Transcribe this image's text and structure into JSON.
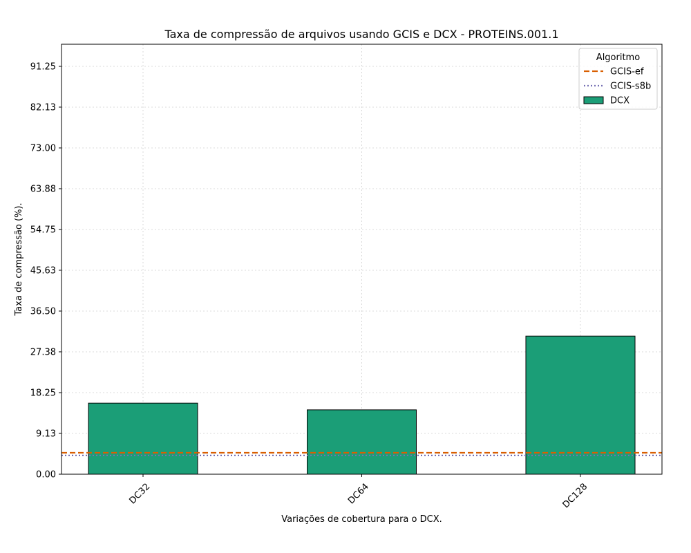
{
  "chart_data": {
    "type": "bar",
    "title": "Taxa de compressão de arquivos usando GCIS e DCX -  PROTEINS.001.1",
    "xlabel": "Variações de cobertura para o DCX.",
    "ylabel": "Taxa de compressão (%).",
    "categories": [
      "DC32",
      "DC64",
      "DC128"
    ],
    "series": [
      {
        "name": "DCX",
        "values": [
          15.9,
          14.4,
          30.9
        ],
        "color": "#1b9e77"
      }
    ],
    "reference_lines": [
      {
        "name": "GCIS-ef",
        "value": 4.8,
        "style": "dashed",
        "color": "#d95f02"
      },
      {
        "name": "GCIS-s8b",
        "value": 4.2,
        "style": "dotted",
        "color": "#7570b3"
      }
    ],
    "yticks": [
      "0.00",
      "9.13",
      "18.25",
      "27.38",
      "36.50",
      "45.63",
      "54.75",
      "63.88",
      "73.00",
      "82.13",
      "91.25"
    ],
    "ylim": [
      0,
      96.2
    ],
    "grid": true,
    "legend": {
      "title": "Algoritmo",
      "placement": "top-right"
    }
  }
}
